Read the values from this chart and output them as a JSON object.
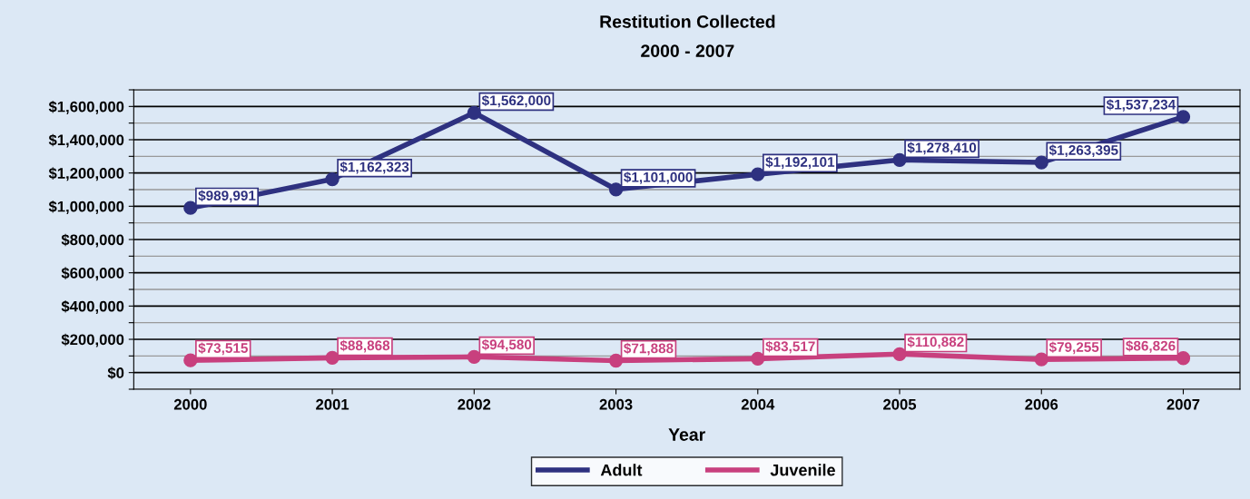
{
  "chart_data": {
    "type": "line",
    "title": "Restitution Collected\n2000 - 2007",
    "xlabel": "Year",
    "categories": [
      "2000",
      "2001",
      "2002",
      "2003",
      "2004",
      "2005",
      "2006",
      "2007"
    ],
    "series": [
      {
        "name": "Adult",
        "color": "#2e3180",
        "values": [
          989991,
          1162323,
          1562000,
          1101000,
          1192101,
          1278410,
          1263395,
          1537234
        ],
        "value_labels": [
          "$989,991",
          "$1,162,323",
          "$1,562,000",
          "$1,101,000",
          "$1,192,101",
          "$1,278,410",
          "$1,263,395",
          "$1,537,234"
        ]
      },
      {
        "name": "Juvenile",
        "color": "#c8407e",
        "values": [
          73515,
          88868,
          94580,
          71888,
          83517,
          110882,
          79255,
          86826
        ],
        "value_labels": [
          "$73,515",
          "$88,868",
          "$94,580",
          "$71,888",
          "$83,517",
          "$110,882",
          "$79,255",
          "$86,826"
        ]
      }
    ],
    "ylim": [
      -100000,
      1700000
    ],
    "yticks": [
      {
        "value": -100000,
        "label": null
      },
      {
        "value": 0,
        "label": "$0"
      },
      {
        "value": 100000,
        "label": null
      },
      {
        "value": 200000,
        "label": "$200,000"
      },
      {
        "value": 300000,
        "label": null
      },
      {
        "value": 400000,
        "label": "$400,000"
      },
      {
        "value": 500000,
        "label": null
      },
      {
        "value": 600000,
        "label": "$600,000"
      },
      {
        "value": 700000,
        "label": null
      },
      {
        "value": 800000,
        "label": "$800,000"
      },
      {
        "value": 900000,
        "label": null
      },
      {
        "value": 1000000,
        "label": "$1,000,000"
      },
      {
        "value": 1100000,
        "label": null
      },
      {
        "value": 1200000,
        "label": "$1,200,000"
      },
      {
        "value": 1300000,
        "label": null
      },
      {
        "value": 1400000,
        "label": "$1,400,000"
      },
      {
        "value": 1500000,
        "label": null
      },
      {
        "value": 1600000,
        "label": "$1,600,000"
      },
      {
        "value": 1700000,
        "label": null
      }
    ],
    "grid": "y",
    "legend": "bottom",
    "marker": "circle",
    "line_style": "solid"
  }
}
